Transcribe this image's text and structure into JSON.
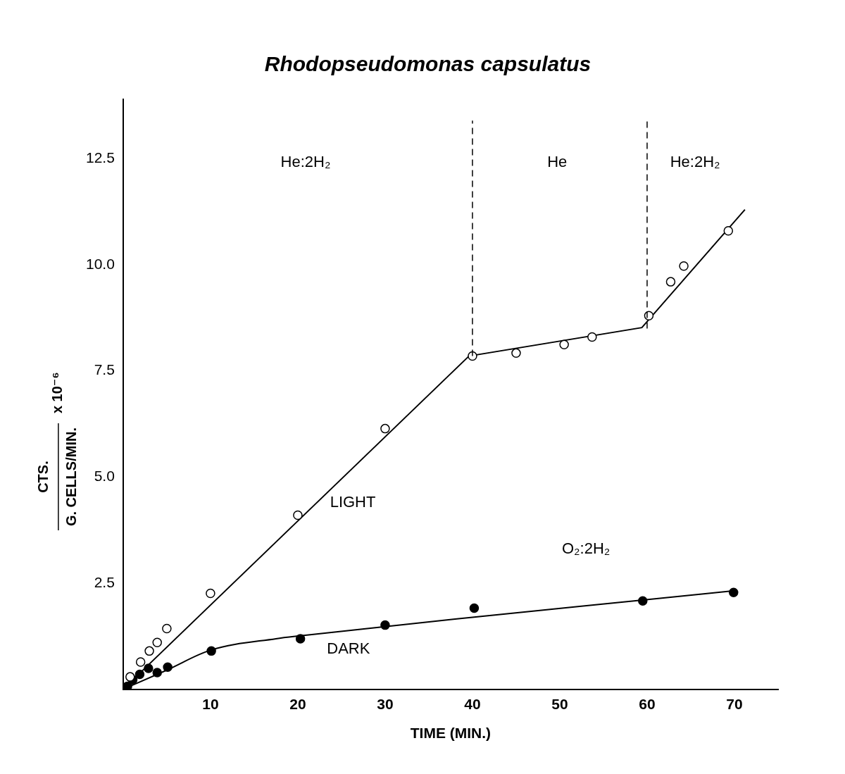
{
  "chart_data": {
    "type": "scatter",
    "title": "Rhodopseudomonas capsulatus",
    "xlabel": "TIME (MIN.)",
    "ylabel": {
      "numerator": "CTS.",
      "denominator": "G. CELLS/MIN.",
      "factor": "x 10⁻⁶"
    },
    "xlim": [
      0,
      75
    ],
    "xticks": [
      10,
      20,
      30,
      40,
      50,
      60,
      70
    ],
    "ylim": [
      0,
      13.9
    ],
    "yticks": [
      2.5,
      {
        "value": 5,
        "label": "5.0"
      },
      {
        "value": 7.5,
        "label": "7.5"
      },
      {
        "value": 10,
        "label": "10.0"
      },
      12.5
    ],
    "grid": false,
    "legend": false,
    "series": [
      {
        "name": "LIGHT",
        "color": "#000000",
        "marker": "open circle",
        "x": [
          0.8,
          2,
          3,
          3.9,
          5,
          10,
          20,
          30,
          40,
          45,
          50.5,
          53.7,
          60.2,
          62.7,
          64.2,
          69.3
        ],
        "values": [
          0.29,
          0.64,
          0.9,
          1.1,
          1.43,
          2.26,
          4.1,
          6.14,
          7.85,
          7.92,
          8.12,
          8.3,
          8.8,
          9.6,
          9.97,
          10.8
        ],
        "fit_x": [
          0,
          39.6,
          59.4,
          71.2
        ],
        "fit_y": [
          0,
          7.85,
          8.52,
          11.3
        ]
      },
      {
        "name": "DARK",
        "color": "#000000",
        "marker": "filled circle",
        "x": [
          0.5,
          1.1,
          1.9,
          2.9,
          3.9,
          5.1,
          10.1,
          20.3,
          30,
          40.2,
          59.5,
          69.9
        ],
        "values": [
          0.07,
          0.22,
          0.35,
          0.49,
          0.39,
          0.52,
          0.9,
          1.19,
          1.51,
          1.91,
          2.08,
          2.28
        ],
        "fit_x": [
          0,
          5,
          10,
          17.5,
          20.3,
          39.8,
          59.5,
          70
        ],
        "fit_y": [
          0,
          0.45,
          0.92,
          1.19,
          1.26,
          1.69,
          2.1,
          2.32
        ]
      }
    ],
    "dividers": [
      {
        "x": 40,
        "y": [
          7.85,
          13.4
        ]
      },
      {
        "x": 60,
        "y": [
          8.5,
          13.4
        ]
      }
    ],
    "annotations": [
      {
        "text": "He:2H₂",
        "x": 20.9,
        "y": 12.4
      },
      {
        "text": "He",
        "x": 49.7,
        "y": 12.4
      },
      {
        "text": "He:2H₂",
        "x": 65.5,
        "y": 12.4
      },
      {
        "text": "LIGHT",
        "x": 26.3,
        "y": 4.4
      },
      {
        "text": "DARK",
        "x": 25.8,
        "y": 0.94
      },
      {
        "text": "O₂:2H₂",
        "x": 53,
        "y": 3.29
      }
    ]
  }
}
